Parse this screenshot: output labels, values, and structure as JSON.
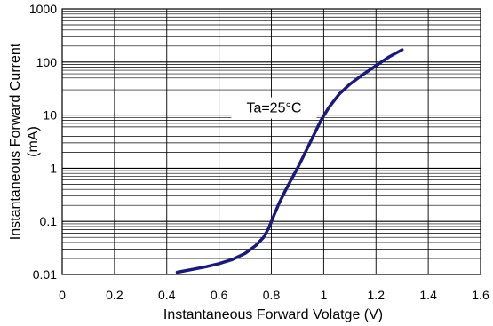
{
  "chart_data": {
    "type": "line",
    "xlabel": "Instantaneous Forward Volatge (V)",
    "ylabel_line1": "Instantaneous Forward Current",
    "ylabel_line2": "(mA)",
    "xlim": [
      0,
      1.6
    ],
    "ylim": [
      0.01,
      1000
    ],
    "yscale": "log",
    "xticks": [
      0,
      0.2,
      0.4,
      0.6,
      0.8,
      1.0,
      1.2,
      1.4,
      1.6
    ],
    "xtick_labels": [
      "0",
      "0.2",
      "0.4",
      "0.6",
      "0.8",
      "1",
      "1.2",
      "1.4",
      "1.6"
    ],
    "yticks": [
      0.01,
      0.1,
      1,
      10,
      100,
      1000
    ],
    "ytick_labels": [
      "0.01",
      "0.1",
      "1",
      "10",
      "100",
      "1000"
    ],
    "grid": true,
    "annotation": "Ta=25°C",
    "annotation_at": [
      0.81,
      10
    ],
    "line_color": "#1a1a7a",
    "series": [
      {
        "x": [
          0.44,
          0.5,
          0.55,
          0.6,
          0.65,
          0.7,
          0.74,
          0.77,
          0.79,
          0.81,
          0.83,
          0.85,
          0.875,
          0.9,
          0.93,
          0.96,
          0.99,
          1.02,
          1.06,
          1.1,
          1.15,
          1.2,
          1.25,
          1.3
        ],
        "y": [
          0.011,
          0.0125,
          0.014,
          0.016,
          0.019,
          0.025,
          0.035,
          0.05,
          0.075,
          0.13,
          0.22,
          0.35,
          0.6,
          1.0,
          2.0,
          4.0,
          8.0,
          14,
          25,
          38,
          58,
          85,
          125,
          170
        ]
      }
    ]
  }
}
